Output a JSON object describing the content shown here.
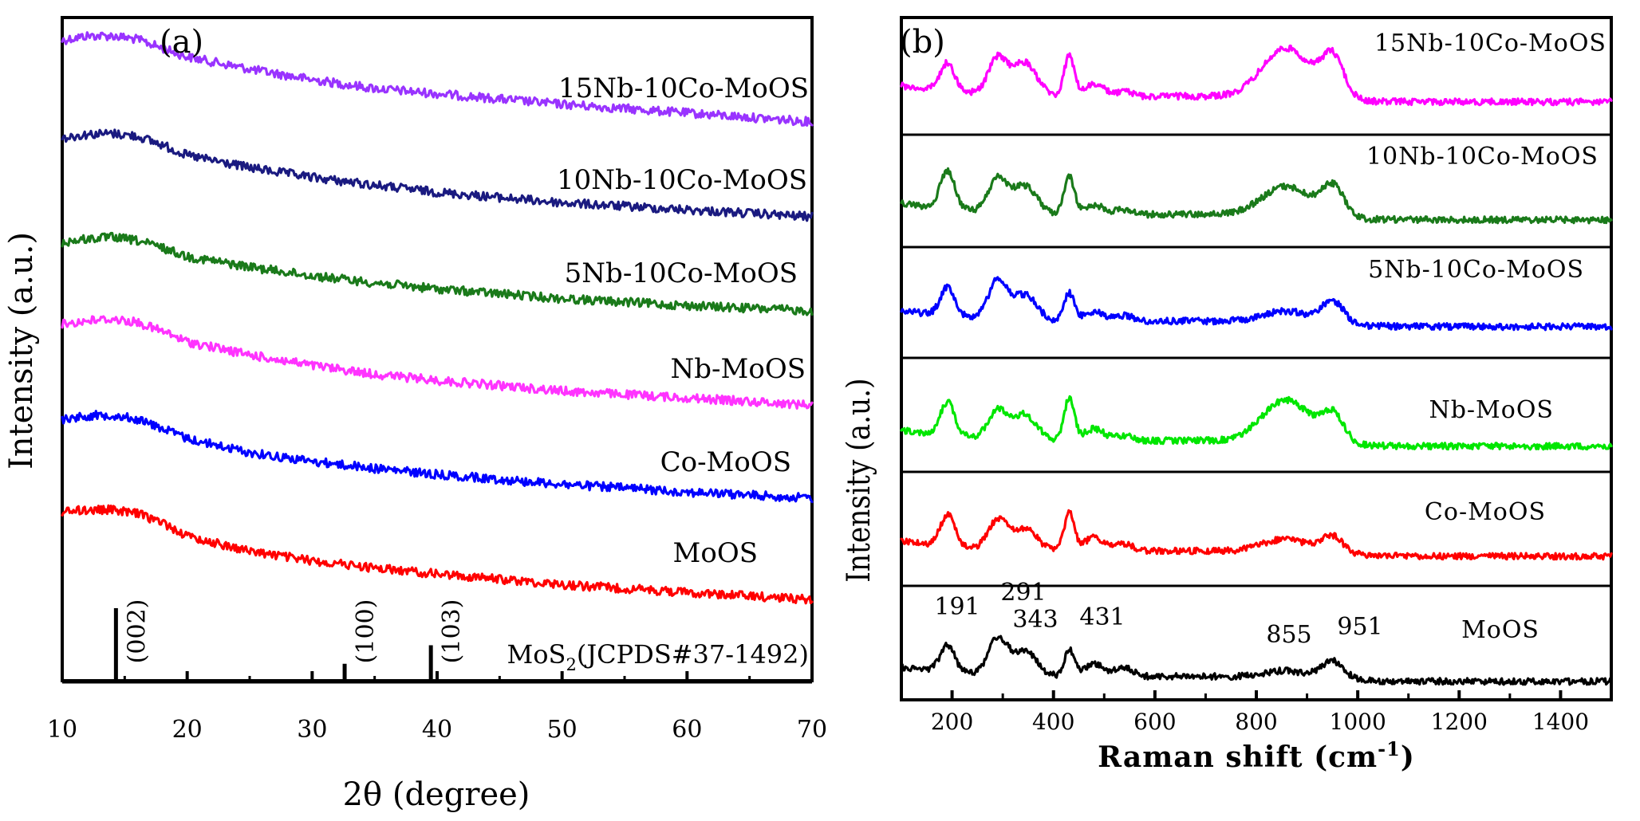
{
  "chart_data": [
    {
      "panel": "(a)",
      "type": "line",
      "xlabel": "2θ (degree)",
      "ylabel": "Intensity (a.u.)",
      "xlim": [
        10,
        70
      ],
      "xticks": [
        "10",
        "20",
        "30",
        "40",
        "50",
        "60",
        "70"
      ],
      "series": [
        {
          "name": "15Nb-10Co-MoOS",
          "color": "#9933ff",
          "x": [
            10,
            12,
            14,
            16,
            18,
            20,
            25,
            30,
            35,
            40,
            50,
            60,
            70
          ],
          "y": [
            0.95,
            1.0,
            1.0,
            0.96,
            0.86,
            0.76,
            0.62,
            0.5,
            0.4,
            0.34,
            0.22,
            0.12,
            0.02
          ]
        },
        {
          "name": "10Nb-10Co-MoOS",
          "color": "#1a1a80",
          "x": [
            10,
            12,
            14,
            16,
            18,
            20,
            25,
            30,
            35,
            40,
            50,
            60,
            70
          ],
          "y": [
            0.9,
            0.94,
            0.95,
            0.92,
            0.82,
            0.7,
            0.56,
            0.45,
            0.36,
            0.28,
            0.16,
            0.08,
            0.0
          ]
        },
        {
          "name": "5Nb-10Co-MoOS",
          "color": "#1a7a1a",
          "x": [
            10,
            12,
            14,
            16,
            18,
            20,
            25,
            30,
            35,
            40,
            50,
            60,
            70
          ],
          "y": [
            0.78,
            0.82,
            0.84,
            0.8,
            0.72,
            0.62,
            0.5,
            0.4,
            0.32,
            0.25,
            0.14,
            0.06,
            0.0
          ]
        },
        {
          "name": "Nb-MoOS",
          "color": "#ff33ff",
          "x": [
            10,
            12,
            14,
            16,
            18,
            20,
            25,
            30,
            35,
            40,
            50,
            60,
            70
          ],
          "y": [
            0.92,
            0.96,
            0.98,
            0.94,
            0.84,
            0.72,
            0.57,
            0.45,
            0.35,
            0.28,
            0.16,
            0.08,
            0.0
          ]
        },
        {
          "name": "Co-MoOS",
          "color": "#0000ff",
          "x": [
            10,
            12,
            14,
            16,
            18,
            20,
            25,
            30,
            35,
            40,
            50,
            60,
            70
          ],
          "y": [
            0.9,
            0.94,
            0.95,
            0.9,
            0.8,
            0.68,
            0.52,
            0.42,
            0.34,
            0.27,
            0.16,
            0.07,
            0.0
          ]
        },
        {
          "name": "MoOS",
          "color": "#ff0000",
          "x": [
            10,
            12,
            14,
            16,
            18,
            20,
            25,
            30,
            35,
            40,
            50,
            60,
            70
          ],
          "y": [
            1.0,
            1.02,
            1.02,
            0.98,
            0.88,
            0.72,
            0.55,
            0.44,
            0.36,
            0.29,
            0.17,
            0.08,
            0.0
          ]
        }
      ],
      "reference": {
        "label_pre": "MoS",
        "label_sub": "2",
        "label_post": "(JCPDS#37-1492)",
        "peaks": [
          {
            "x": 14.3,
            "height": 1.0,
            "label": "(002)"
          },
          {
            "x": 32.6,
            "height": 0.25,
            "label": "(100)"
          },
          {
            "x": 39.5,
            "height": 0.5,
            "label": "(103)"
          }
        ]
      }
    },
    {
      "panel": "(b)",
      "type": "line",
      "xlabel_pre": "Raman shift (cm",
      "xlabel_sup": "-1",
      "xlabel_post": ")",
      "ylabel": "Intensity (a.u.)",
      "xlim": [
        100,
        1500
      ],
      "xticks": [
        "200",
        "400",
        "600",
        "800",
        "1000",
        "1200",
        "1400"
      ],
      "peaks": [
        {
          "x": 191,
          "label": "191"
        },
        {
          "x": 291,
          "label": "291"
        },
        {
          "x": 343,
          "label": "343"
        },
        {
          "x": 431,
          "label": "431"
        },
        {
          "x": 855,
          "label": "855"
        },
        {
          "x": 951,
          "label": "951"
        }
      ],
      "series": [
        {
          "name": "15Nb-10Co-MoOS",
          "color": "#ff00ff"
        },
        {
          "name": "10Nb-10Co-MoOS",
          "color": "#1a7a1a"
        },
        {
          "name": "5Nb-10Co-MoOS",
          "color": "#0000ff"
        },
        {
          "name": "Nb-MoOS",
          "color": "#00e600"
        },
        {
          "name": "Co-MoOS",
          "color": "#ff0000"
        },
        {
          "name": "MoOS",
          "color": "#000000"
        }
      ]
    }
  ]
}
